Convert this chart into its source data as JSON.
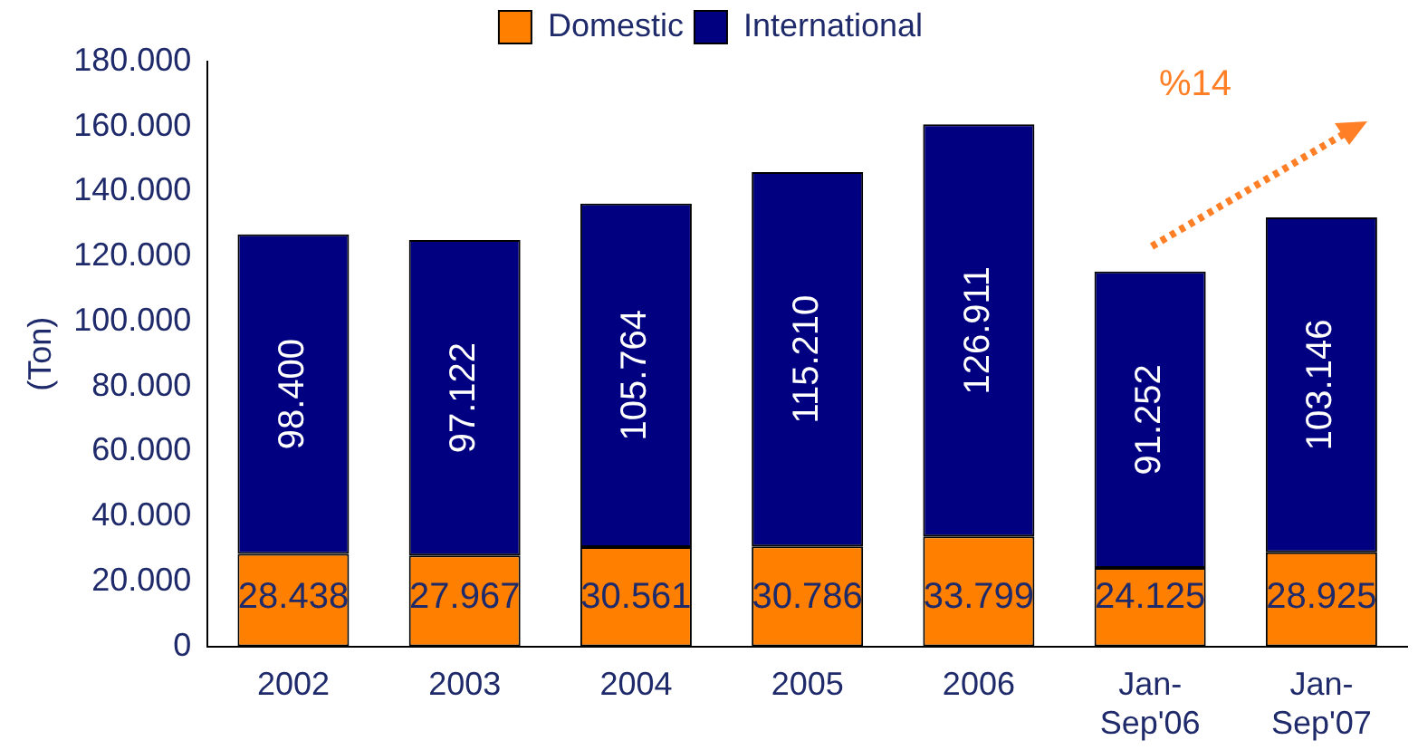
{
  "chart_data": {
    "type": "bar",
    "stacked": true,
    "ylabel": "(Ton)",
    "legend": "top",
    "grid": false,
    "categories": [
      "2002",
      "2003",
      "2004",
      "2005",
      "2006",
      "Jan-Sep'06",
      "Jan-Sep'07"
    ],
    "series": [
      {
        "name": "Domestic",
        "color": "#ff8000",
        "values": [
          28438,
          27967,
          30561,
          30786,
          33799,
          24125,
          28925
        ],
        "value_labels": [
          "28.438",
          "27.967",
          "30.561",
          "30.786",
          "33.799",
          "24.125",
          "28.925"
        ]
      },
      {
        "name": "International",
        "color": "#000080",
        "values": [
          98400,
          97122,
          105764,
          115210,
          126911,
          91252,
          103146
        ],
        "value_labels": [
          "98.400",
          "97.122",
          "105.764",
          "115.210",
          "126.911",
          "91.252",
          "103.146"
        ]
      }
    ],
    "ylim": [
      0,
      180000
    ],
    "yticks": [
      {
        "value": 0,
        "label": "0"
      },
      {
        "value": 20000,
        "label": "20.000"
      },
      {
        "value": 40000,
        "label": "40.000"
      },
      {
        "value": 60000,
        "label": "60.000"
      },
      {
        "value": 80000,
        "label": "80.000"
      },
      {
        "value": 100000,
        "label": "100.000"
      },
      {
        "value": 120000,
        "label": "120.000"
      },
      {
        "value": 140000,
        "label": "140.000"
      },
      {
        "value": 160000,
        "label": "160.000"
      },
      {
        "value": 180000,
        "label": "180.000"
      }
    ],
    "annotations": [
      "%14"
    ]
  }
}
